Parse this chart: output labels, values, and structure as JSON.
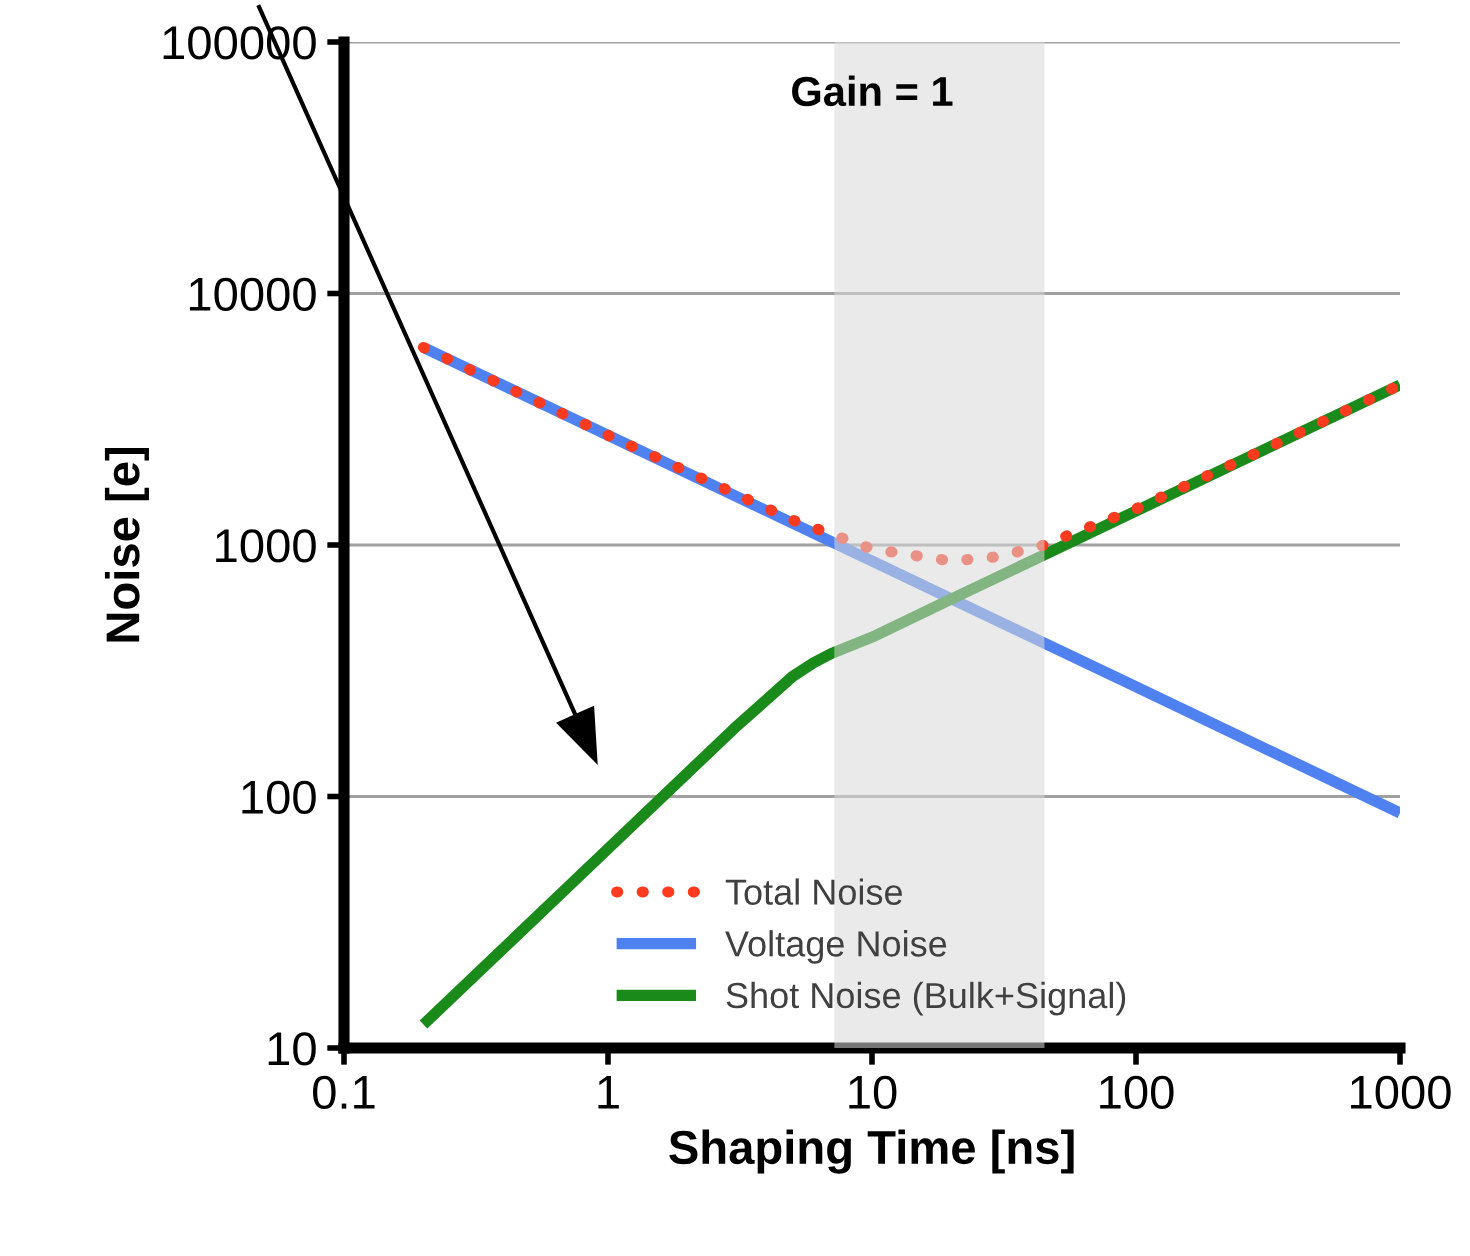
{
  "chart_data": {
    "type": "line",
    "title": "Gain = 1",
    "xlabel": "Shaping Time [ns]",
    "ylabel": "Noise [e]",
    "log": "xy",
    "xlim": [
      0.1,
      1000
    ],
    "ylim": [
      10,
      100000
    ],
    "xticks": [
      0.1,
      1,
      10,
      100,
      1000
    ],
    "yticks": [
      10,
      100,
      1000,
      10000,
      100000
    ],
    "grid": "y",
    "legend": "bottom",
    "bands": [
      {
        "axis": "x",
        "from": 7.2,
        "to": 45,
        "color": "#d9d9d9"
      }
    ],
    "series": [
      {
        "name": "Total Noise",
        "color": "#ff3b1f",
        "line_style": "dotted",
        "x": [
          0.2,
          1,
          5,
          10,
          20,
          30,
          44,
          100,
          300,
          1000
        ],
        "values": [
          6100,
          2730,
          1256,
          964,
          863,
          898,
          994,
          1392,
          2375,
          4330
        ]
      },
      {
        "name": "Voltage Noise",
        "color": "#4f81f0",
        "line_style": "solid",
        "x": [
          0.2,
          1,
          10,
          100,
          1000
        ],
        "values": [
          6100,
          2730,
          863,
          273,
          86
        ]
      },
      {
        "name": "Shot Noise (Bulk+Signal)",
        "color": "#1a8a1a",
        "line_style": "solid",
        "x": [
          0.2,
          1,
          3,
          5,
          6,
          7,
          10,
          20,
          44,
          100,
          300,
          1000
        ],
        "values": [
          12.4,
          62,
          186,
          300,
          340,
          370,
          430,
          610,
          905,
          1365,
          2370,
          4330
        ]
      }
    ]
  }
}
